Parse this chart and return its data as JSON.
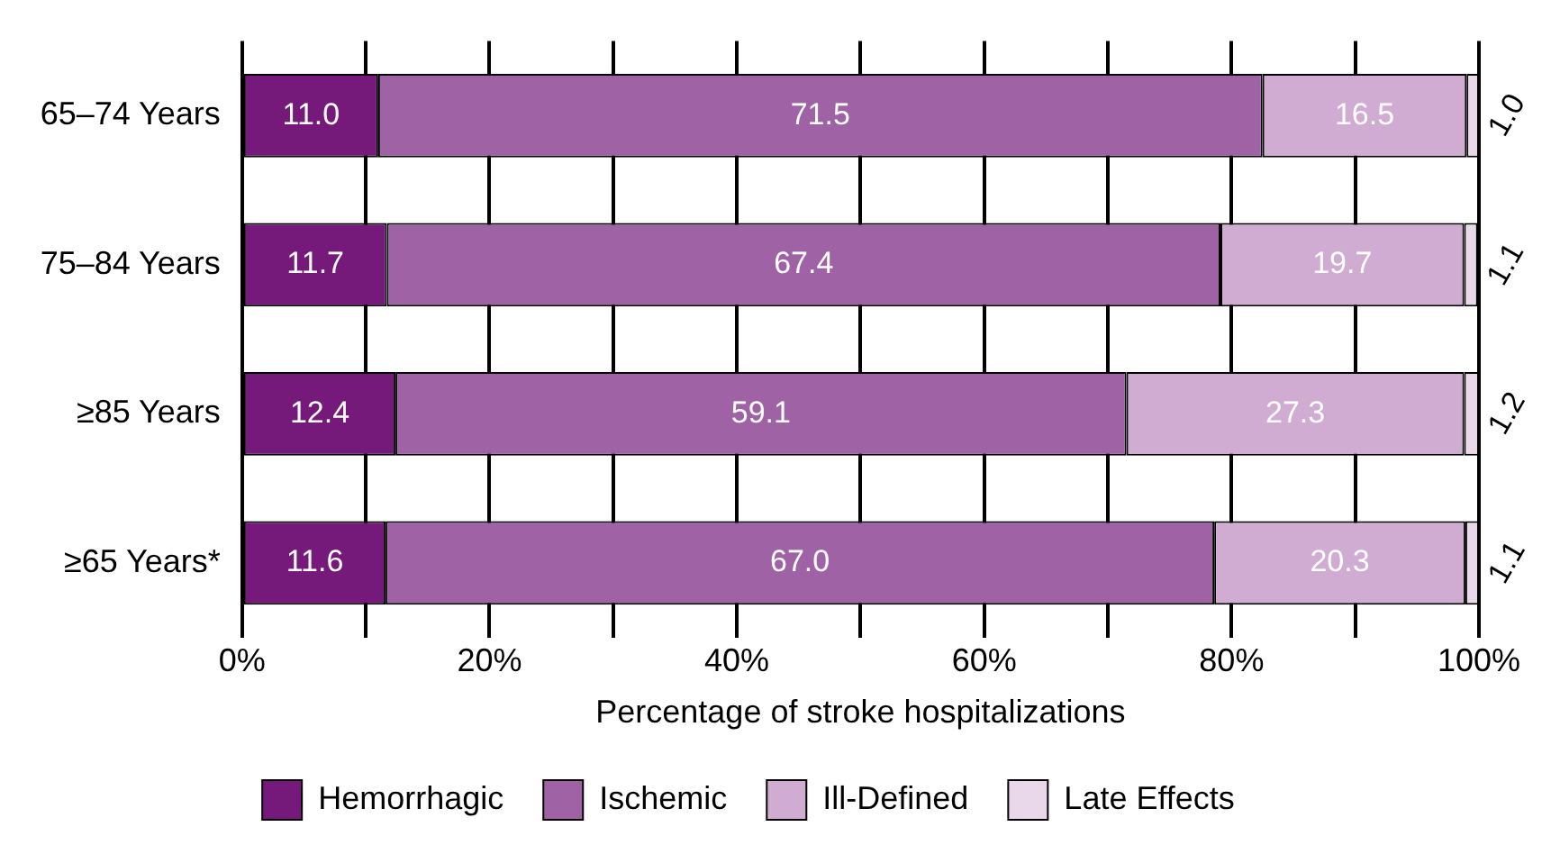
{
  "chart_data": {
    "type": "bar",
    "orientation": "horizontal",
    "stacked": true,
    "xlabel": "Percentage of stroke hospitalizations",
    "categories": [
      "65–74 Years",
      "75–84 Years",
      "≥85 Years",
      "≥65 Years*"
    ],
    "series": [
      {
        "name": "Hemorrhagic",
        "color": "#751a7a",
        "values": [
          11.0,
          11.7,
          12.4,
          11.6
        ],
        "value_labels": [
          "11.0",
          "11.7",
          "12.4",
          "11.6"
        ]
      },
      {
        "name": "Ischemic",
        "color": "#9e62a5",
        "values": [
          71.5,
          67.4,
          59.1,
          67.0
        ],
        "value_labels": [
          "71.5",
          "67.4",
          "59.1",
          "67.0"
        ]
      },
      {
        "name": "Ill-Defined",
        "color": "#d1acd2",
        "values": [
          16.5,
          19.7,
          27.3,
          20.3
        ],
        "value_labels": [
          "16.5",
          "19.7",
          "27.3",
          "20.3"
        ]
      },
      {
        "name": "Late Effects",
        "color": "#e8d8ea",
        "values": [
          1.0,
          1.1,
          1.2,
          1.1
        ],
        "value_labels": [
          "1.0",
          "1.1",
          "1.2",
          "1.1"
        ]
      }
    ],
    "xlim": [
      0,
      100
    ],
    "xticks": [
      {
        "value": 0,
        "label": "0%"
      },
      {
        "value": 10,
        "label": null
      },
      {
        "value": 20,
        "label": "20%"
      },
      {
        "value": 30,
        "label": null
      },
      {
        "value": 40,
        "label": "40%"
      },
      {
        "value": 50,
        "label": null
      },
      {
        "value": 60,
        "label": "60%"
      },
      {
        "value": 70,
        "label": null
      },
      {
        "value": 80,
        "label": "80%"
      },
      {
        "value": 90,
        "label": null
      },
      {
        "value": 100,
        "label": "100%"
      }
    ],
    "grid": "x",
    "legend": "bottom"
  }
}
